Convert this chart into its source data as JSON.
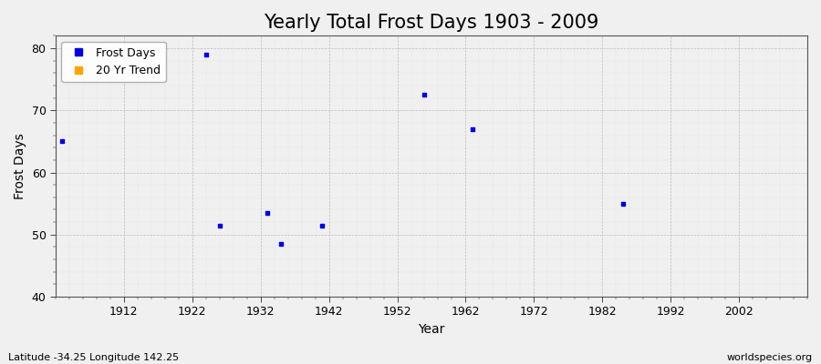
{
  "title": "Yearly Total Frost Days 1903 - 2009",
  "xlabel": "Year",
  "ylabel": "Frost Days",
  "background_color": "#f0f0f0",
  "plot_bg_color": "#f0f0f0",
  "frost_days_color": "#0000dd",
  "trend_color": "#ffa500",
  "xlim": [
    1902,
    2012
  ],
  "ylim": [
    40,
    82
  ],
  "yticks": [
    40,
    50,
    60,
    70,
    80
  ],
  "xticks": [
    1912,
    1922,
    1932,
    1942,
    1952,
    1962,
    1972,
    1982,
    1992,
    2002
  ],
  "data_points": [
    [
      1903,
      65
    ],
    [
      1924,
      79
    ],
    [
      1926,
      51.5
    ],
    [
      1933,
      53.5
    ],
    [
      1935,
      48.5
    ],
    [
      1941,
      51.5
    ],
    [
      1956,
      72.5
    ],
    [
      1963,
      67
    ],
    [
      1985,
      55
    ]
  ],
  "subtitle_left": "Latitude -34.25 Longitude 142.25",
  "subtitle_right": "worldspecies.org",
  "title_fontsize": 15,
  "axis_fontsize": 10,
  "label_fontsize": 9,
  "subtitle_fontsize": 8,
  "tick_fontsize": 9
}
